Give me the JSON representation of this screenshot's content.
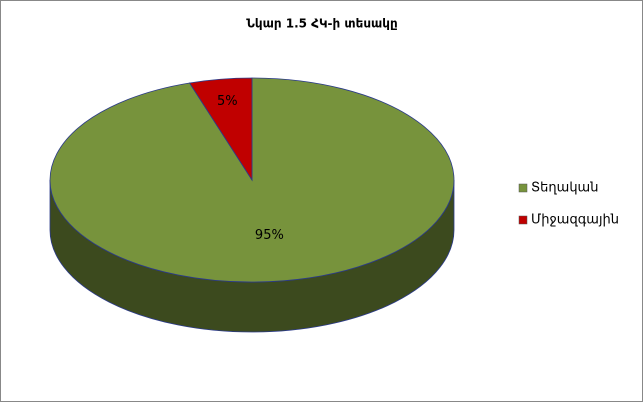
{
  "chart_data": {
    "type": "pie",
    "title": "Նկար 1.5 ՀԿ-ի տեսակը",
    "categories": [
      "Տեղական",
      "Միջազգային"
    ],
    "values": [
      95,
      5
    ],
    "value_labels": [
      "95%",
      "5%"
    ],
    "colors": [
      "#77933c",
      "#c00000"
    ],
    "legend": "right"
  }
}
